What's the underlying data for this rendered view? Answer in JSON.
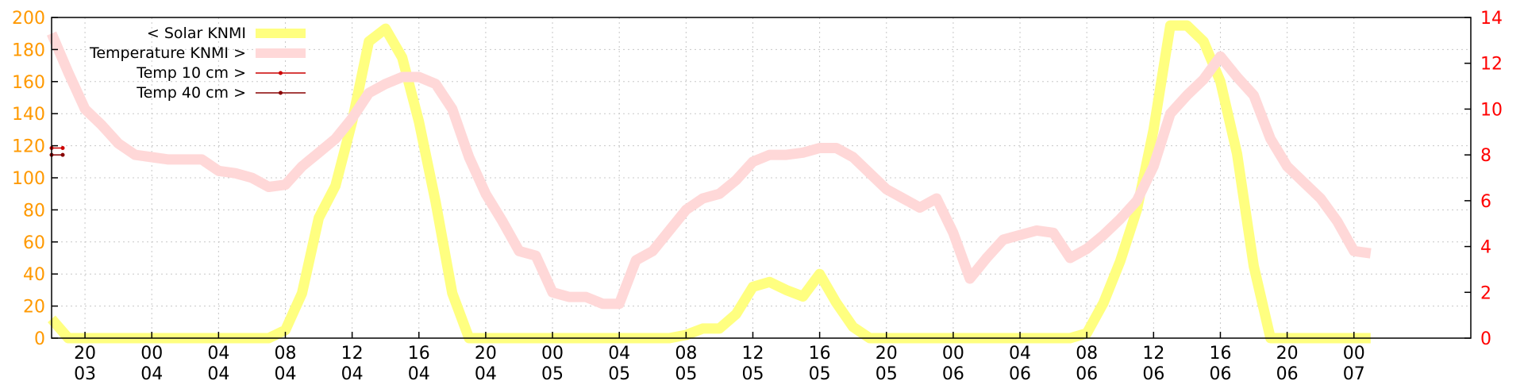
{
  "chart_data": {
    "type": "line",
    "title": "",
    "y_left": {
      "min": 0,
      "max": 200,
      "ticks": [
        0,
        20,
        40,
        60,
        80,
        100,
        120,
        140,
        160,
        180,
        200
      ],
      "color": "#ff9900"
    },
    "y_right": {
      "min": 0,
      "max": 14,
      "ticks": [
        0,
        2,
        4,
        6,
        8,
        10,
        12,
        14
      ],
      "color": "#ff0000"
    },
    "x_axis": {
      "start_hour": 18,
      "end_hour": 103,
      "ticks": [
        {
          "hour": 20,
          "time": "20",
          "day": "03"
        },
        {
          "hour": 24,
          "time": "00",
          "day": "04"
        },
        {
          "hour": 28,
          "time": "04",
          "day": "04"
        },
        {
          "hour": 32,
          "time": "08",
          "day": "04"
        },
        {
          "hour": 36,
          "time": "12",
          "day": "04"
        },
        {
          "hour": 40,
          "time": "16",
          "day": "04"
        },
        {
          "hour": 44,
          "time": "20",
          "day": "04"
        },
        {
          "hour": 48,
          "time": "00",
          "day": "05"
        },
        {
          "hour": 52,
          "time": "04",
          "day": "05"
        },
        {
          "hour": 56,
          "time": "08",
          "day": "05"
        },
        {
          "hour": 60,
          "time": "12",
          "day": "05"
        },
        {
          "hour": 64,
          "time": "16",
          "day": "05"
        },
        {
          "hour": 68,
          "time": "20",
          "day": "05"
        },
        {
          "hour": 72,
          "time": "00",
          "day": "06"
        },
        {
          "hour": 76,
          "time": "04",
          "day": "06"
        },
        {
          "hour": 80,
          "time": "08",
          "day": "06"
        },
        {
          "hour": 84,
          "time": "12",
          "day": "06"
        },
        {
          "hour": 88,
          "time": "16",
          "day": "06"
        },
        {
          "hour": 92,
          "time": "20",
          "day": "06"
        },
        {
          "hour": 96,
          "time": "00",
          "day": "07"
        }
      ]
    },
    "grid": true,
    "legend_position": "top-left",
    "series": [
      {
        "name": "< Solar KNMI",
        "axis": "left",
        "color": "#ffff80",
        "style": "thick",
        "points": [
          [
            18,
            12
          ],
          [
            19,
            0
          ],
          [
            20,
            0
          ],
          [
            21,
            0
          ],
          [
            22,
            0
          ],
          [
            23,
            0
          ],
          [
            24,
            0
          ],
          [
            25,
            0
          ],
          [
            26,
            0
          ],
          [
            27,
            0
          ],
          [
            28,
            0
          ],
          [
            29,
            0
          ],
          [
            30,
            0
          ],
          [
            31,
            0
          ],
          [
            32,
            5
          ],
          [
            33,
            28
          ],
          [
            34,
            75
          ],
          [
            35,
            95
          ],
          [
            36,
            135
          ],
          [
            37,
            185
          ],
          [
            38,
            193
          ],
          [
            39,
            175
          ],
          [
            40,
            135
          ],
          [
            41,
            85
          ],
          [
            42,
            28
          ],
          [
            43,
            0
          ],
          [
            44,
            0
          ],
          [
            45,
            0
          ],
          [
            46,
            0
          ],
          [
            47,
            0
          ],
          [
            48,
            0
          ],
          [
            49,
            0
          ],
          [
            50,
            0
          ],
          [
            51,
            0
          ],
          [
            52,
            0
          ],
          [
            53,
            0
          ],
          [
            54,
            0
          ],
          [
            55,
            0
          ],
          [
            56,
            2
          ],
          [
            57,
            6
          ],
          [
            58,
            6
          ],
          [
            59,
            15
          ],
          [
            60,
            32
          ],
          [
            61,
            35
          ],
          [
            62,
            30
          ],
          [
            63,
            26
          ],
          [
            64,
            40
          ],
          [
            65,
            22
          ],
          [
            66,
            7
          ],
          [
            67,
            0
          ],
          [
            68,
            0
          ],
          [
            69,
            0
          ],
          [
            70,
            0
          ],
          [
            71,
            0
          ],
          [
            72,
            0
          ],
          [
            73,
            0
          ],
          [
            74,
            0
          ],
          [
            75,
            0
          ],
          [
            76,
            0
          ],
          [
            77,
            0
          ],
          [
            78,
            0
          ],
          [
            79,
            0
          ],
          [
            80,
            3
          ],
          [
            81,
            22
          ],
          [
            82,
            48
          ],
          [
            83,
            80
          ],
          [
            84,
            130
          ],
          [
            85,
            195
          ],
          [
            86,
            195
          ],
          [
            87,
            185
          ],
          [
            88,
            160
          ],
          [
            89,
            115
          ],
          [
            90,
            45
          ],
          [
            91,
            0
          ],
          [
            92,
            0
          ],
          [
            93,
            0
          ],
          [
            94,
            0
          ],
          [
            95,
            0
          ],
          [
            96,
            0
          ],
          [
            97,
            0
          ]
        ]
      },
      {
        "name": "Temperature KNMI >",
        "axis": "right",
        "color": "#ffd8d8",
        "style": "thick",
        "points": [
          [
            18,
            13.3
          ],
          [
            19,
            11.6
          ],
          [
            20,
            10.0
          ],
          [
            21,
            9.3
          ],
          [
            22,
            8.5
          ],
          [
            23,
            8.0
          ],
          [
            24,
            7.9
          ],
          [
            25,
            7.8
          ],
          [
            26,
            7.8
          ],
          [
            27,
            7.8
          ],
          [
            28,
            7.3
          ],
          [
            29,
            7.2
          ],
          [
            30,
            7.0
          ],
          [
            31,
            6.6
          ],
          [
            32,
            6.7
          ],
          [
            33,
            7.5
          ],
          [
            34,
            8.1
          ],
          [
            35,
            8.7
          ],
          [
            36,
            9.6
          ],
          [
            37,
            10.7
          ],
          [
            38,
            11.1
          ],
          [
            39,
            11.4
          ],
          [
            40,
            11.4
          ],
          [
            41,
            11.1
          ],
          [
            42,
            10.0
          ],
          [
            43,
            7.9
          ],
          [
            44,
            6.3
          ],
          [
            45,
            5.1
          ],
          [
            46,
            3.8
          ],
          [
            47,
            3.6
          ],
          [
            48,
            2.0
          ],
          [
            49,
            1.8
          ],
          [
            50,
            1.8
          ],
          [
            51,
            1.5
          ],
          [
            52,
            1.5
          ],
          [
            53,
            3.4
          ],
          [
            54,
            3.8
          ],
          [
            55,
            4.7
          ],
          [
            56,
            5.6
          ],
          [
            57,
            6.1
          ],
          [
            58,
            6.3
          ],
          [
            59,
            6.9
          ],
          [
            60,
            7.7
          ],
          [
            61,
            8.0
          ],
          [
            62,
            8.0
          ],
          [
            63,
            8.1
          ],
          [
            64,
            8.3
          ],
          [
            65,
            8.3
          ],
          [
            66,
            7.9
          ],
          [
            67,
            7.2
          ],
          [
            68,
            6.5
          ],
          [
            69,
            6.1
          ],
          [
            70,
            5.7
          ],
          [
            71,
            6.1
          ],
          [
            72,
            4.6
          ],
          [
            73,
            2.6
          ],
          [
            74,
            3.5
          ],
          [
            75,
            4.3
          ],
          [
            76,
            4.5
          ],
          [
            77,
            4.7
          ],
          [
            78,
            4.6
          ],
          [
            79,
            3.5
          ],
          [
            80,
            3.9
          ],
          [
            81,
            4.5
          ],
          [
            82,
            5.2
          ],
          [
            83,
            6.0
          ],
          [
            84,
            7.5
          ],
          [
            85,
            9.8
          ],
          [
            86,
            10.6
          ],
          [
            87,
            11.3
          ],
          [
            88,
            12.3
          ],
          [
            89,
            11.4
          ],
          [
            90,
            10.6
          ],
          [
            91,
            8.7
          ],
          [
            92,
            7.5
          ],
          [
            93,
            6.8
          ],
          [
            94,
            6.1
          ],
          [
            95,
            5.1
          ],
          [
            96,
            3.8
          ],
          [
            97,
            3.7
          ]
        ]
      },
      {
        "name": "Temp 10 cm >",
        "axis": "right",
        "color": "#cc0000",
        "style": "dots",
        "points": [
          [
            18,
            8.3
          ]
        ]
      },
      {
        "name": "Temp 40 cm >",
        "axis": "right",
        "color": "#880000",
        "style": "dots",
        "points": [
          [
            18,
            8.0
          ]
        ]
      }
    ]
  }
}
